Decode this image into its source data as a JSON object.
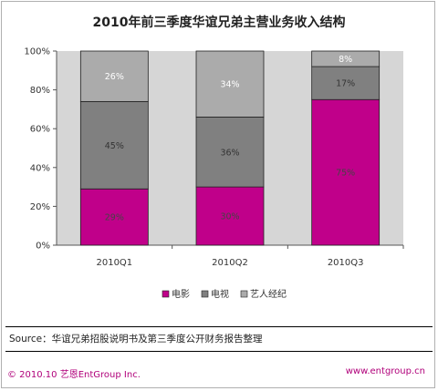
{
  "chart_data": {
    "type": "bar",
    "stacked": true,
    "title": "2010年前三季度华谊兄弟主营业务收入结构",
    "categories": [
      "2010Q1",
      "2010Q2",
      "2010Q3"
    ],
    "series": [
      {
        "name": "电影",
        "values": [
          29,
          30,
          75
        ],
        "labels": [
          "29%",
          "30%",
          "75%"
        ],
        "color": "#c0008a",
        "label_color": "#444444"
      },
      {
        "name": "电视",
        "values": [
          45,
          36,
          17
        ],
        "labels": [
          "45%",
          "36%",
          "17%"
        ],
        "color": "#808080",
        "label_color": "#333333"
      },
      {
        "name": "艺人经纪",
        "values": [
          26,
          34,
          8
        ],
        "labels": [
          "26%",
          "34%",
          "8%"
        ],
        "color": "#ababab",
        "label_color": "#ffffff"
      }
    ],
    "yticks": [
      "0%",
      "20%",
      "40%",
      "60%",
      "80%",
      "100%"
    ],
    "ylim": [
      0,
      100
    ],
    "xlabel": "",
    "ylabel": "",
    "grid": false,
    "plot_background": "#d6d6d6",
    "legend": "bottom"
  },
  "source": "Source：华谊兄弟招股说明书及第三季度公开财务报告整理",
  "footer": {
    "copyright": "© 2010.10  艺恩EntGroup Inc.",
    "url": "www.entgroup.cn"
  }
}
